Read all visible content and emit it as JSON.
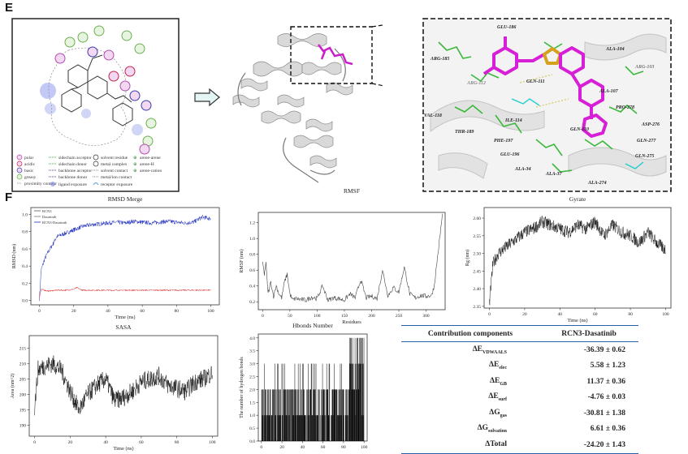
{
  "figure": {
    "panel_e_label": "E",
    "panel_f_label": "F",
    "residues_zoom": [
      "GLU-186",
      "ARG-185",
      "ARG-112",
      "ALA-104",
      "ARG-103",
      "GLN-111",
      "ALA-107",
      "VAL-118",
      "THR-189",
      "ILE-114",
      "PRO-278",
      "ASP-276",
      "PHE-197",
      "GLN-110",
      "GLN-277",
      "GLU-196",
      "GLN-275",
      "ALA-34",
      "ALA-37",
      "ALA-274"
    ],
    "legend_2d": [
      "polar",
      "acidic",
      "basic",
      "greasy",
      "proximity contour",
      "sidechain acceptor",
      "sidechain donor",
      "backbone acceptor",
      "backbone donor",
      "ligand exposure",
      "solvent residue",
      "metal complex",
      "solvent contact",
      "metal/ion contact",
      "receptor exposure",
      "arene-arene",
      "arene-H",
      "arene-cation"
    ]
  },
  "table": {
    "col1": "Contribution components",
    "col2": "RCN3-Dasatinib",
    "rows": [
      {
        "base": "ΔE",
        "sub": "VDWAALS",
        "value": "-36.39 ± 0.62"
      },
      {
        "base": "ΔE",
        "sub": "elec",
        "value": "5.58 ± 1.23"
      },
      {
        "base": "ΔE",
        "sub": "GB",
        "value": "11.37 ± 0.36"
      },
      {
        "base": "ΔE",
        "sub": "surf",
        "value": "-4.76 ± 0.03"
      },
      {
        "base": "ΔG",
        "sub": "gas",
        "value": "-30.81 ± 1.38"
      },
      {
        "base": "ΔG",
        "sub": "solvation",
        "value": "6.61 ± 0.36"
      },
      {
        "base": "ΔTotal",
        "sub": "",
        "value": "-24.20 ± 1.43"
      }
    ]
  },
  "chart_data": [
    {
      "id": "rmsd",
      "type": "line",
      "title": "RMSD Merge",
      "xlabel": "Time (ns)",
      "ylabel": "RMSD (nm)",
      "xlim": [
        -5,
        105
      ],
      "ylim": [
        -0.05,
        1.08
      ],
      "xticks": [
        "0",
        "20",
        "40",
        "60",
        "80",
        "100"
      ],
      "yticks": [
        "0.0",
        "0.2",
        "0.4",
        "0.6",
        "0.8",
        "1.0"
      ],
      "legend": [
        "RCN3",
        "Dasatinib",
        "RCN3-Dasatinib"
      ],
      "series": [
        {
          "name": "RCN3-Dasatinib",
          "color": "#1f2fbf",
          "x": [
            0,
            1,
            3,
            5,
            8,
            10,
            15,
            20,
            25,
            30,
            35,
            40,
            45,
            50,
            55,
            60,
            65,
            70,
            75,
            80,
            85,
            90,
            95,
            100
          ],
          "y": [
            0.02,
            0.35,
            0.48,
            0.56,
            0.66,
            0.74,
            0.78,
            0.82,
            0.86,
            0.88,
            0.89,
            0.9,
            0.91,
            0.9,
            0.92,
            0.91,
            0.9,
            0.91,
            0.92,
            0.91,
            0.9,
            0.91,
            0.97,
            0.95
          ]
        },
        {
          "name": "Dasatinib",
          "color": "#dd1c1c",
          "x": [
            0,
            1,
            5,
            10,
            15,
            20,
            22,
            25,
            30,
            40,
            50,
            60,
            70,
            80,
            90,
            100
          ],
          "y": [
            0.04,
            0.13,
            0.11,
            0.12,
            0.12,
            0.13,
            0.15,
            0.12,
            0.12,
            0.12,
            0.12,
            0.12,
            0.12,
            0.12,
            0.12,
            0.12
          ]
        }
      ]
    },
    {
      "id": "rmsf",
      "type": "line",
      "title": "RMSF",
      "xlabel": "Residues",
      "ylabel": "RMSF (nm)",
      "xlim": [
        -8,
        335
      ],
      "ylim": [
        0.1,
        1.33
      ],
      "xticks": [
        "0",
        "50",
        "100",
        "150",
        "200",
        "250",
        "300"
      ],
      "yticks": [
        "0.2",
        "0.4",
        "0.6",
        "0.8",
        "1.0",
        "1.2"
      ],
      "series": [
        {
          "name": "RMSF",
          "color": "#444444",
          "x": [
            0,
            3,
            6,
            10,
            15,
            20,
            25,
            30,
            35,
            40,
            45,
            50,
            55,
            60,
            70,
            80,
            90,
            100,
            110,
            120,
            130,
            140,
            150,
            160,
            170,
            180,
            190,
            200,
            210,
            220,
            230,
            240,
            250,
            260,
            270,
            280,
            290,
            300,
            310,
            315,
            320,
            325,
            330
          ],
          "y": [
            0.7,
            0.55,
            0.68,
            0.3,
            0.45,
            0.27,
            0.4,
            0.3,
            0.25,
            0.45,
            0.55,
            0.3,
            0.22,
            0.24,
            0.23,
            0.22,
            0.26,
            0.24,
            0.4,
            0.22,
            0.25,
            0.24,
            0.22,
            0.3,
            0.25,
            0.48,
            0.25,
            0.27,
            0.24,
            0.6,
            0.28,
            0.38,
            0.32,
            0.64,
            0.3,
            0.25,
            0.28,
            0.27,
            0.28,
            0.4,
            0.7,
            1.0,
            1.3
          ]
        }
      ]
    },
    {
      "id": "gyrate",
      "type": "line",
      "title": "Gyrate",
      "xlabel": "Time (ns)",
      "ylabel": "Rg (nm)",
      "xlim": [
        -3,
        103
      ],
      "ylim": [
        2.345,
        2.63
      ],
      "xticks": [
        "0",
        "20",
        "40",
        "60",
        "80",
        "100"
      ],
      "yticks": [
        "2.35",
        "2.40",
        "2.45",
        "2.50",
        "2.55",
        "2.60"
      ],
      "series": [
        {
          "name": "Rg",
          "color": "#111111",
          "x": [
            0,
            2,
            5,
            10,
            15,
            20,
            25,
            30,
            35,
            40,
            45,
            50,
            55,
            60,
            65,
            70,
            75,
            80,
            85,
            90,
            95,
            100
          ],
          "y": [
            2.36,
            2.47,
            2.5,
            2.52,
            2.54,
            2.56,
            2.57,
            2.59,
            2.58,
            2.57,
            2.56,
            2.58,
            2.57,
            2.59,
            2.55,
            2.58,
            2.56,
            2.55,
            2.53,
            2.56,
            2.53,
            2.51
          ]
        }
      ]
    },
    {
      "id": "sasa",
      "type": "line",
      "title": "SASA",
      "xlabel": "Time (ns)",
      "ylabel": "Area (nm^2)",
      "xlim": [
        -3,
        103
      ],
      "ylim": [
        186.5,
        219
      ],
      "xticks": [
        "0",
        "20",
        "40",
        "60",
        "80",
        "100"
      ],
      "yticks": [
        "190",
        "195",
        "200",
        "205",
        "210",
        "215"
      ],
      "series": [
        {
          "name": "SASA",
          "color": "#111111",
          "x": [
            0,
            2,
            5,
            10,
            15,
            20,
            25,
            30,
            35,
            40,
            45,
            50,
            55,
            60,
            65,
            70,
            75,
            80,
            85,
            90,
            95,
            100
          ],
          "y": [
            196,
            208,
            209,
            210,
            208,
            201,
            195,
            200,
            203,
            205,
            198,
            199,
            201,
            204,
            205,
            206,
            203,
            202,
            201,
            204,
            205,
            207
          ]
        }
      ]
    },
    {
      "id": "hbonds",
      "type": "bar",
      "title": "Hbonds Number",
      "xlabel": "Time (ns)",
      "ylabel": "The number of hydrogen bonds",
      "xlim": [
        -3,
        103
      ],
      "ylim": [
        0,
        4.15
      ],
      "xticks": [
        "0",
        "20",
        "40",
        "60",
        "80",
        "100"
      ],
      "yticks": [
        "0.0",
        "0.5",
        "1.0",
        "1.5",
        "2.0",
        "2.5",
        "3.0",
        "3.5",
        "4.0"
      ],
      "series": [
        {
          "name": "Hbonds",
          "color": "#000000"
        }
      ]
    }
  ]
}
